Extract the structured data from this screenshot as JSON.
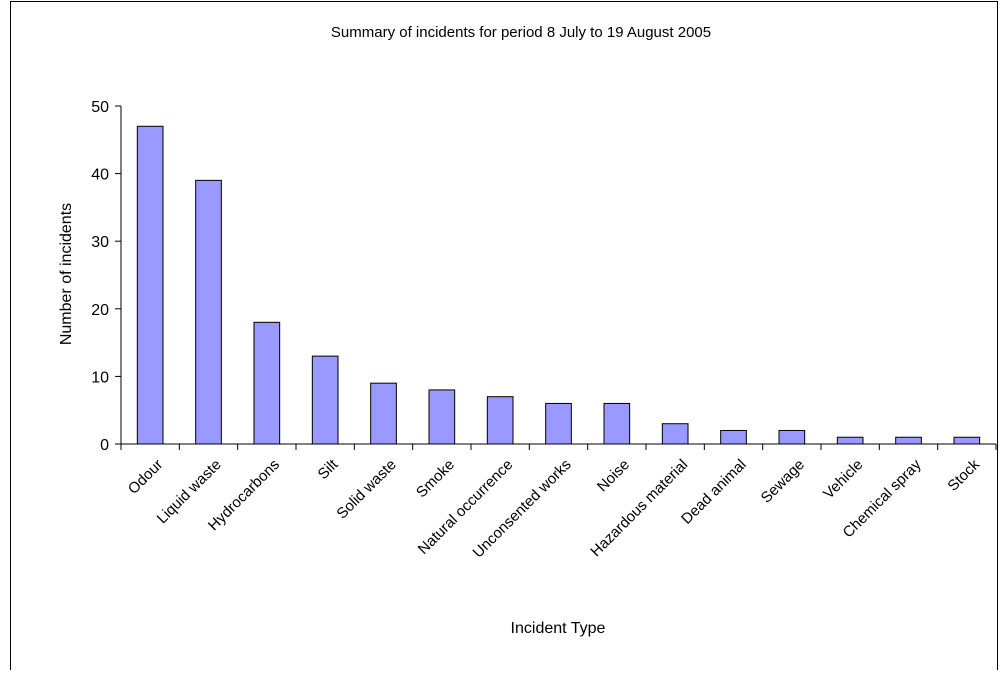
{
  "chart_data": {
    "type": "bar",
    "title": "Summary of incidents for period 8 July to 19 August 2005",
    "xlabel": "Incident Type",
    "ylabel": "Number of incidents",
    "categories": [
      "Odour",
      "Liquid waste",
      "Hydrocarbons",
      "Silt",
      "Solid waste",
      "Smoke",
      "Natural occurrence",
      "Unconsented works",
      "Noise",
      "Hazardous material",
      "Dead animal",
      "Sewage",
      "Vehicle",
      "Chemical spray",
      "Stock"
    ],
    "values": [
      47,
      39,
      18,
      13,
      9,
      8,
      7,
      6,
      6,
      3,
      2,
      2,
      1,
      1,
      1
    ],
    "ylim": [
      0,
      50
    ],
    "yticks": [
      0,
      10,
      20,
      30,
      40,
      50
    ],
    "grid": false,
    "legend": "none",
    "colors": {
      "bar_fill": "#9999ff",
      "bar_stroke": "#000000",
      "axis": "#000000",
      "background": "#ffffff"
    }
  }
}
